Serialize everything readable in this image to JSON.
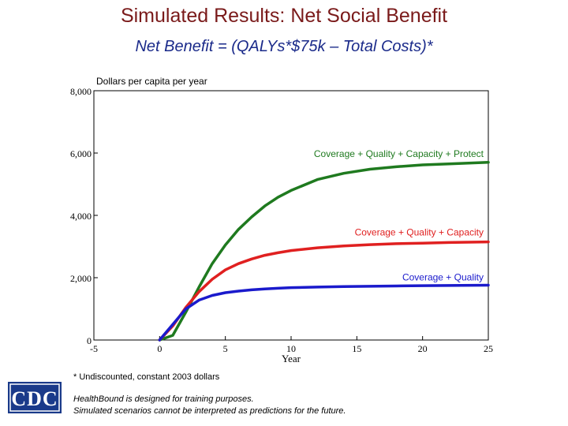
{
  "header": {
    "title": "Simulated Results: Net Social Benefit",
    "subtitle": "Net Benefit = (QALYs*$75k – Total Costs)*"
  },
  "footer": {
    "footnote": "* Undiscounted, constant 2003 dollars",
    "disclaimer_line1": "HealthBound is designed for training purposes.",
    "disclaimer_line2": "Simulated scenarios cannot be interpreted as predictions for the future.",
    "logo_text": "CDC"
  },
  "colors": {
    "title": "#7a1a1a",
    "subtitle": "#1a2a8a",
    "green": "#1f7a1f",
    "red": "#e02020",
    "blue": "#1a1acc"
  },
  "chart_data": {
    "type": "line",
    "title": "",
    "ylabel": "Dollars per capita per year",
    "xlabel": "Year",
    "xlim": [
      -5,
      25
    ],
    "ylim": [
      0,
      8000
    ],
    "x_ticks": [
      "-5",
      "0",
      "5",
      "10",
      "15",
      "20",
      "25"
    ],
    "y_ticks": [
      "0",
      "2,000",
      "4,000",
      "6,000",
      "8,000"
    ],
    "grid": false,
    "series": [
      {
        "name": "Coverage + Quality + Capacity + Protect",
        "color": "#1f7a1f",
        "x": [
          0,
          1,
          2,
          3,
          4,
          5,
          6,
          7,
          8,
          9,
          10,
          12,
          14,
          16,
          18,
          20,
          22,
          25
        ],
        "y": [
          0,
          150,
          900,
          1700,
          2450,
          3050,
          3550,
          3950,
          4300,
          4580,
          4800,
          5150,
          5350,
          5480,
          5560,
          5620,
          5650,
          5700
        ]
      },
      {
        "name": "Coverage + Quality + Capacity",
        "color": "#e02020",
        "x": [
          0,
          1,
          2,
          3,
          4,
          5,
          6,
          7,
          8,
          9,
          10,
          12,
          14,
          16,
          18,
          20,
          22,
          25
        ],
        "y": [
          0,
          450,
          1050,
          1550,
          1950,
          2250,
          2450,
          2600,
          2720,
          2800,
          2870,
          2960,
          3020,
          3060,
          3090,
          3110,
          3130,
          3150
        ]
      },
      {
        "name": "Coverage + Quality",
        "color": "#1a1acc",
        "x": [
          0,
          1,
          2,
          3,
          4,
          5,
          6,
          7,
          8,
          9,
          10,
          12,
          14,
          16,
          18,
          20,
          22,
          25
        ],
        "y": [
          0,
          500,
          1000,
          1280,
          1430,
          1520,
          1570,
          1610,
          1640,
          1660,
          1680,
          1700,
          1715,
          1725,
          1735,
          1745,
          1750,
          1760
        ]
      }
    ]
  }
}
